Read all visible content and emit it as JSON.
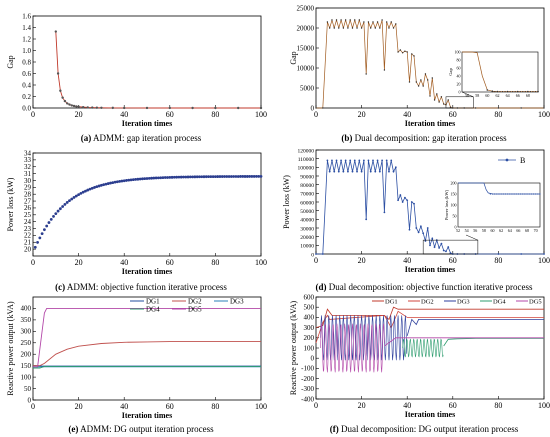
{
  "chart_data": [
    {
      "type": "line",
      "caption_tag": "(a)",
      "caption_text": " ADMM: gap iteration process",
      "xlabel": "Iteration times",
      "ylabel": "Gap",
      "xlim": [
        0,
        100
      ],
      "ylim": [
        0,
        1.6
      ],
      "xticks": [
        0,
        20,
        40,
        60,
        80,
        100
      ],
      "yticks": [
        0.0,
        0.2,
        0.4,
        0.6,
        0.8,
        1.0,
        1.2,
        1.4,
        1.6
      ],
      "ytick_labels": [
        "0.0",
        "0.2",
        "0.4",
        "0.6",
        "0.8",
        "1.0",
        "1.2",
        "1.4",
        "1.6"
      ],
      "grid": false,
      "legend": null,
      "colors": {
        "line": "#c0392b",
        "marker": "#555555"
      },
      "series": [
        {
          "x": [
            10,
            11,
            12,
            13,
            14,
            15,
            16,
            17,
            18,
            19,
            20,
            22,
            24,
            26,
            28,
            30,
            35,
            40,
            50,
            60,
            70,
            80,
            90,
            100
          ],
          "y": [
            1.33,
            0.6,
            0.3,
            0.18,
            0.12,
            0.08,
            0.06,
            0.045,
            0.035,
            0.028,
            0.022,
            0.015,
            0.01,
            0.007,
            0.005,
            0.004,
            0.002,
            0.001,
            0.0005,
            0.0003,
            0.0002,
            0.0001,
            0.0001,
            0.0001
          ]
        }
      ]
    },
    {
      "type": "line",
      "caption_tag": "(b)",
      "caption_text": " Dual decomposition: gap iteration process",
      "xlabel": "Iteration times",
      "ylabel": "Gap",
      "xlim": [
        0,
        100
      ],
      "ylim": [
        0,
        25000
      ],
      "xticks": [
        0,
        20,
        40,
        60,
        80,
        100
      ],
      "yticks": [
        0,
        5000,
        10000,
        15000,
        20000,
        25000
      ],
      "ytick_labels": [
        "0",
        "5000",
        "10000",
        "15000",
        "20000",
        "25000"
      ],
      "grid": false,
      "legend": null,
      "colors": {
        "line": "#a05a1e"
      },
      "series": [
        {
          "x": [
            0,
            3,
            5,
            6,
            7,
            8,
            9,
            10,
            11,
            12,
            13,
            14,
            15,
            16,
            17,
            18,
            19,
            20,
            21,
            22,
            23,
            24,
            25,
            26,
            27,
            28,
            29,
            30,
            31,
            32,
            33,
            34,
            35,
            36,
            37,
            38,
            39,
            40,
            41,
            42,
            43,
            44,
            45,
            46,
            47,
            48,
            49,
            50,
            51,
            52,
            53,
            54,
            55,
            56,
            57,
            58,
            59,
            60,
            62,
            65,
            70,
            80,
            90,
            100
          ],
          "y": [
            0,
            0,
            21500,
            20000,
            22000,
            20000,
            22000,
            20000,
            22000,
            20000,
            22000,
            20000,
            22000,
            20000,
            22000,
            20000,
            22000,
            20000,
            21500,
            8500,
            21500,
            20000,
            21500,
            20000,
            21500,
            20000,
            22000,
            9500,
            21500,
            20000,
            21500,
            20000,
            21000,
            14000,
            14500,
            13800,
            14200,
            14000,
            6500,
            13500,
            13000,
            6500,
            5500,
            7000,
            5500,
            8500,
            7000,
            3000,
            7500,
            2000,
            3500,
            1500,
            2800,
            1000,
            800,
            2000,
            200,
            0,
            0,
            0,
            0,
            0,
            0,
            0
          ]
        }
      ],
      "inset": {
        "ylabel": "Gap",
        "xlim": [
          55,
          70
        ],
        "ylim": [
          0,
          100
        ],
        "xticks": [
          56,
          58,
          60,
          62,
          64,
          66,
          68
        ],
        "yticks": [
          0,
          20,
          40,
          60,
          80,
          100
        ],
        "x": [
          55,
          57,
          58,
          59,
          60,
          61,
          62,
          64,
          66,
          68,
          70
        ],
        "y": [
          100,
          100,
          98,
          40,
          5,
          2,
          1,
          1,
          1,
          1,
          1
        ]
      }
    },
    {
      "type": "scatter",
      "caption_tag": "(c)",
      "caption_text": " ADMM: objective function iterative process",
      "xlabel": "Iteration times",
      "ylabel": "Power loss (kW)",
      "xlim": [
        0,
        100
      ],
      "ylim": [
        19,
        34
      ],
      "xticks": [
        0,
        20,
        40,
        60,
        80,
        100
      ],
      "yticks": [
        20,
        21,
        22,
        23,
        24,
        25,
        26,
        27,
        28,
        29,
        30,
        31,
        32,
        33,
        34
      ],
      "ytick_labels": [
        "20",
        "21",
        "22",
        "23",
        "24",
        "25",
        "26",
        "27",
        "28",
        "29",
        "30",
        "31",
        "32",
        "33",
        "34"
      ],
      "grid": false,
      "legend": null,
      "colors": {
        "marker": "#2c3e8f"
      },
      "series": [
        {
          "formula": "y = 30.6 - 11.1*exp(-x/14)",
          "x_from": 1,
          "x_to": 100
        }
      ]
    },
    {
      "type": "line",
      "caption_tag": "(d)",
      "caption_text": " Dual decomposition: objective function iterative process",
      "xlabel": "Iteration times",
      "ylabel": "Power loss (kW)",
      "xlim": [
        0,
        100
      ],
      "ylim": [
        0,
        120000
      ],
      "xticks": [
        0,
        20,
        40,
        60,
        80,
        100
      ],
      "yticks": [
        0,
        10000,
        20000,
        30000,
        40000,
        50000,
        60000,
        70000,
        80000,
        90000,
        100000,
        110000,
        120000
      ],
      "ytick_labels": [
        "0",
        "10000",
        "20000",
        "30000",
        "40000",
        "50000",
        "60000",
        "70000",
        "80000",
        "90000",
        "100000",
        "110000",
        "120000"
      ],
      "grid": false,
      "legend": "top-right",
      "colors": {
        "line": "#2c4fa3"
      },
      "series": [
        {
          "name": "B",
          "x": [
            0,
            3,
            5,
            6,
            7,
            8,
            9,
            10,
            11,
            12,
            13,
            14,
            15,
            16,
            17,
            18,
            19,
            20,
            21,
            22,
            23,
            24,
            25,
            26,
            27,
            28,
            29,
            30,
            31,
            32,
            33,
            34,
            35,
            36,
            37,
            38,
            39,
            40,
            41,
            42,
            43,
            44,
            45,
            46,
            47,
            48,
            49,
            50,
            51,
            52,
            53,
            54,
            55,
            56,
            57,
            58,
            59,
            60,
            62,
            65,
            70,
            80,
            90,
            100
          ],
          "y": [
            0,
            0,
            108000,
            95000,
            108000,
            95000,
            108000,
            95000,
            108000,
            95000,
            108000,
            95000,
            108000,
            95000,
            108000,
            95000,
            108000,
            95000,
            108000,
            40000,
            108000,
            95000,
            108000,
            95000,
            108000,
            95000,
            108000,
            48000,
            108000,
            95000,
            108000,
            95000,
            100000,
            62000,
            68000,
            60000,
            65000,
            62000,
            28000,
            60000,
            58000,
            30000,
            25000,
            32000,
            24000,
            15000,
            30000,
            10000,
            18000,
            8000,
            16000,
            7000,
            12000,
            4000,
            3000,
            8000,
            1000,
            0,
            0,
            0,
            0,
            0,
            0,
            0
          ]
        }
      ],
      "inset": {
        "ylabel": "Power loss (kW)",
        "xlim": [
          52,
          71
        ],
        "ylim": [
          0,
          200
        ],
        "xticks": [
          52,
          54,
          56,
          58,
          60,
          62,
          64,
          66,
          68,
          70
        ],
        "yticks": [
          0,
          50,
          100,
          150,
          200
        ],
        "x": [
          52,
          55,
          57,
          58,
          58.5,
          59,
          60,
          62,
          64,
          66,
          68,
          70,
          71
        ],
        "y": [
          200,
          200,
          200,
          200,
          170,
          155,
          150,
          150,
          150,
          150,
          150,
          150,
          150
        ]
      }
    },
    {
      "type": "line",
      "caption_tag": "(e)",
      "caption_text": " ADMM: DG output iteration process",
      "xlabel": "Iteration times",
      "ylabel": "Reactive power output (kVA)",
      "xlim": [
        0,
        100
      ],
      "ylim": [
        0,
        450
      ],
      "xticks": [
        0,
        20,
        40,
        60,
        80,
        100
      ],
      "yticks": [
        0,
        50,
        100,
        150,
        200,
        250,
        300,
        350,
        400
      ],
      "ytick_labels": [
        "0",
        "50",
        "100",
        "150",
        "200",
        "250",
        "300",
        "350",
        "400"
      ],
      "grid": false,
      "legend": "top-right",
      "series": [
        {
          "name": "DG1",
          "color": "#1f4e9c",
          "x": [
            0,
            2,
            4,
            100
          ],
          "y": [
            150,
            150,
            148,
            148
          ]
        },
        {
          "name": "DG2",
          "color": "#c0504d",
          "x": [
            0,
            3,
            5,
            10,
            15,
            20,
            30,
            40,
            50,
            60,
            70,
            80,
            100
          ],
          "y": [
            150,
            150,
            160,
            200,
            222,
            235,
            247,
            252,
            254,
            255,
            255,
            255,
            255
          ]
        },
        {
          "name": "DG3",
          "color": "#2a7fb8",
          "x": [
            0,
            5,
            100
          ],
          "y": [
            145,
            145,
            145
          ]
        },
        {
          "name": "DG4",
          "color": "#2e9d6f",
          "x": [
            0,
            3,
            5,
            100
          ],
          "y": [
            140,
            140,
            147,
            147
          ]
        },
        {
          "name": "DG5",
          "color": "#b347a8",
          "x": [
            0,
            2,
            5,
            6,
            100
          ],
          "y": [
            145,
            145,
            380,
            400,
            400
          ]
        }
      ]
    },
    {
      "type": "line",
      "caption_tag": "(f)",
      "caption_text": " Dual decomposition: DG output iteration process",
      "xlabel": "Iteration times",
      "ylabel": "Reactive power output (kVA)",
      "xlim": [
        0,
        100
      ],
      "ylim": [
        -400,
        600
      ],
      "xticks": [
        0,
        20,
        40,
        60,
        80,
        100
      ],
      "yticks": [
        -400,
        -300,
        -200,
        -100,
        0,
        100,
        200,
        300,
        400,
        500,
        600
      ],
      "ytick_labels": [
        "-400",
        "-300",
        "-200",
        "-100",
        "0",
        "100",
        "200",
        "300",
        "400",
        "500",
        "600"
      ],
      "grid": false,
      "legend": "top-right",
      "series": [
        {
          "name": "DG1",
          "color": "#c0392b",
          "x": [
            0,
            3,
            5,
            7,
            30,
            32,
            34,
            36,
            38,
            100
          ],
          "y": [
            300,
            320,
            480,
            420,
            420,
            380,
            500,
            480,
            480,
            480
          ]
        },
        {
          "name": "DG2",
          "color": "#d0463c",
          "x": [
            0,
            3,
            5,
            6,
            30,
            33,
            36,
            38,
            40,
            100
          ],
          "y": [
            150,
            350,
            420,
            380,
            420,
            300,
            460,
            430,
            400,
            400
          ]
        },
        {
          "name": "DG3",
          "color": "#2c3e9c",
          "osc": {
            "x_from": 2,
            "x_to": 40,
            "center": 200,
            "amp": 220,
            "period": 1.6
          },
          "x": [
            40,
            42,
            44,
            45,
            48,
            100
          ],
          "y": [
            220,
            380,
            330,
            380,
            380,
            380
          ]
        },
        {
          "name": "DG4",
          "color": "#2e9d6f",
          "osc": {
            "x_from": 38,
            "x_to": 56,
            "center": 100,
            "amp": 90,
            "period": 1.5
          },
          "x": [
            56,
            58,
            62,
            70,
            80,
            100
          ],
          "y": [
            120,
            185,
            190,
            195,
            195,
            195
          ]
        },
        {
          "name": "DG5",
          "color": "#b347a8",
          "osc": {
            "x_from": 2,
            "x_to": 30,
            "center": 100,
            "amp": 240,
            "period": 1.7
          },
          "x": [
            30,
            35,
            100
          ],
          "y": [
            120,
            200,
            200
          ]
        }
      ]
    }
  ]
}
